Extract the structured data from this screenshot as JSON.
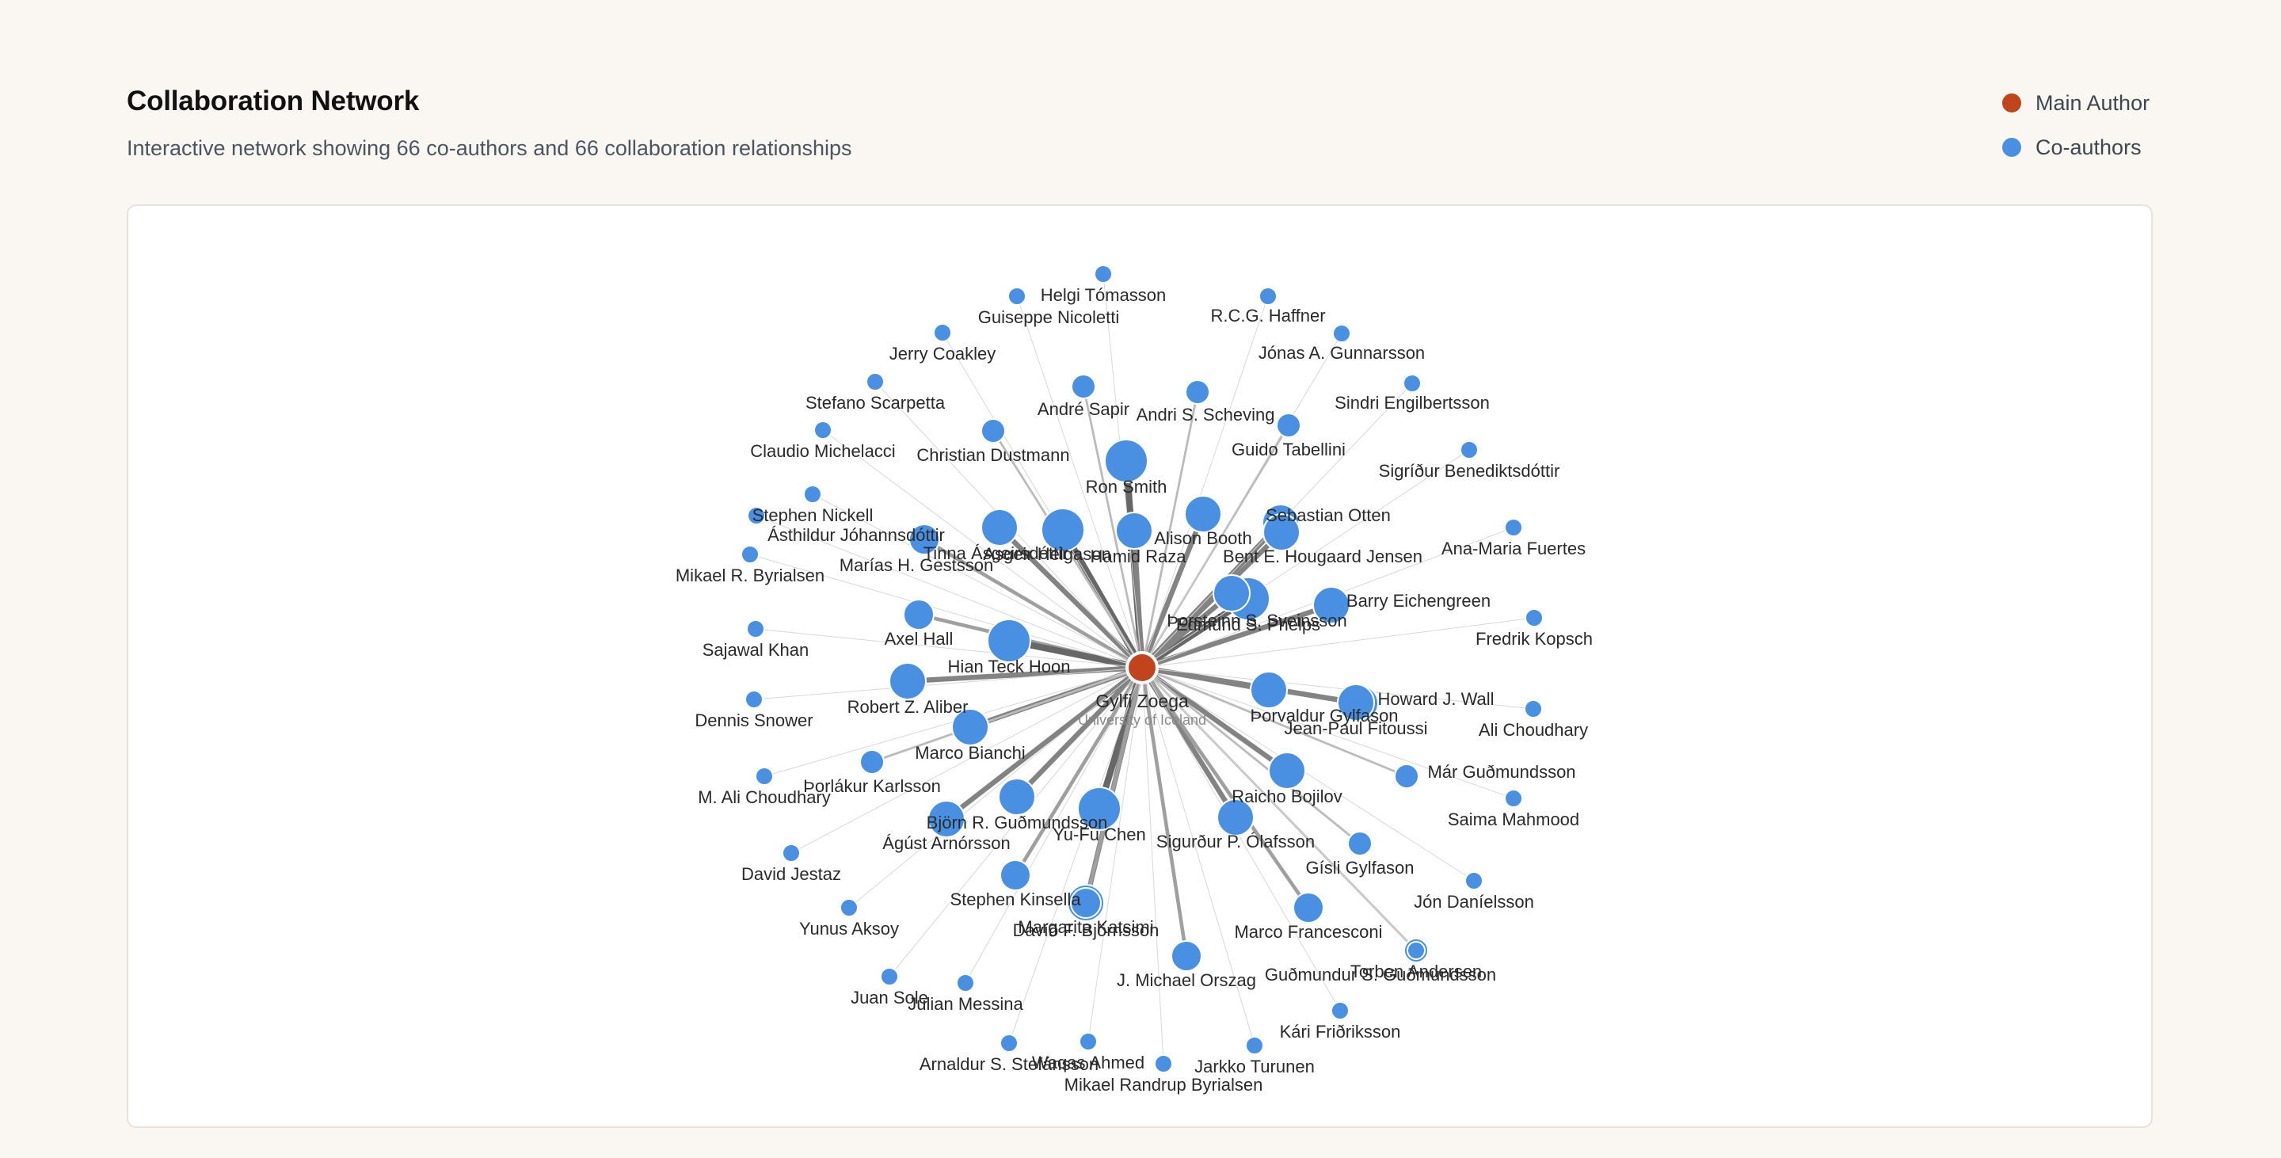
{
  "header": {
    "title": "Collaboration Network",
    "subtitle": "Interactive network showing 66 co-authors and 66 collaboration relationships"
  },
  "legend": {
    "main_author": {
      "label": "Main Author",
      "color": "#c0441c"
    },
    "coauthors": {
      "label": "Co-authors",
      "color": "#4a90e2"
    }
  },
  "network": {
    "main": {
      "name": "Gylfi Zoega",
      "affiliation": "University of Iceland"
    },
    "coauthors": [
      {
        "name": "Ron Smith",
        "weight": 5
      },
      {
        "name": "Alison Booth",
        "weight": 4
      },
      {
        "name": "Asgeir Helgason",
        "weight": 5
      },
      {
        "name": "Andri S. Scheving",
        "weight": 2
      },
      {
        "name": "André Sapir",
        "weight": 2
      },
      {
        "name": "Tinna Ásgeirsdóttir",
        "weight": 4
      },
      {
        "name": "Hamid Raza",
        "weight": 4
      },
      {
        "name": "Christian Dustmann",
        "weight": 2
      },
      {
        "name": "Sebastian Otten",
        "weight": 4
      },
      {
        "name": "Guido Tabellini",
        "weight": 2
      },
      {
        "name": "Marías H. Gestsson",
        "weight": 3
      },
      {
        "name": "Axel Hall",
        "weight": 3
      },
      {
        "name": "Hian Teck Hoon",
        "weight": 5
      },
      {
        "name": "Robert Z. Aliber",
        "weight": 4
      },
      {
        "name": "Edmund S. Phelps",
        "weight": 5
      },
      {
        "name": "Bent E. Hougaard Jensen",
        "weight": 4
      },
      {
        "name": "Barry Eichengreen",
        "weight": 4
      },
      {
        "name": "Þorsteinn S. Sveinsson",
        "weight": 4
      },
      {
        "name": "Howard J. Wall",
        "weight": 4
      },
      {
        "name": "Þorvaldur Gylfason",
        "weight": 4
      },
      {
        "name": "Jean-Paul Fitoussi",
        "weight": 4
      },
      {
        "name": "Marco Bianchi",
        "weight": 4
      },
      {
        "name": "Raicho Bojilov",
        "weight": 4
      },
      {
        "name": "Þorlákur Karlsson",
        "weight": 2
      },
      {
        "name": "Björn R. Guðmundsson",
        "weight": 4
      },
      {
        "name": "Yu-Fu Chen",
        "weight": 5
      },
      {
        "name": "Ágúst Arnórsson",
        "weight": 4
      },
      {
        "name": "Sigurður P. Ólafsson",
        "weight": 4
      },
      {
        "name": "Már Guðmundsson",
        "weight": 2
      },
      {
        "name": "Stephen Kinsella",
        "weight": 3
      },
      {
        "name": "Davíð F. Björnsson",
        "weight": 4
      },
      {
        "name": "Marco Francesconi",
        "weight": 3
      },
      {
        "name": "Margarita Katsimi",
        "weight": 3
      },
      {
        "name": "Gísli Gylfason",
        "weight": 2
      },
      {
        "name": "Guðmundur S. Guðmundsson",
        "weight": 2
      },
      {
        "name": "J. Michael Orszag",
        "weight": 3
      },
      {
        "name": "Guiseppe Nicoletti",
        "weight": 1
      },
      {
        "name": "Helgi Tómasson",
        "weight": 1
      },
      {
        "name": "R.C.G. Haffner",
        "weight": 1
      },
      {
        "name": "Jerry Coakley",
        "weight": 1
      },
      {
        "name": "Jónas A. Gunnarsson",
        "weight": 1
      },
      {
        "name": "Stefano Scarpetta",
        "weight": 1
      },
      {
        "name": "Sindri Engilbertsson",
        "weight": 1
      },
      {
        "name": "Claudio Michelacci",
        "weight": 1
      },
      {
        "name": "Ásthildur Jóhannsdóttir",
        "weight": 1
      },
      {
        "name": "Sigríður Benediktsdóttir",
        "weight": 1
      },
      {
        "name": "Stephen Nickell",
        "weight": 1
      },
      {
        "name": "Ana-Maria Fuertes",
        "weight": 1
      },
      {
        "name": "Mikael R. Byrialsen",
        "weight": 1
      },
      {
        "name": "Fredrik Kopsch",
        "weight": 1
      },
      {
        "name": "Sajawal Khan",
        "weight": 1
      },
      {
        "name": "Dennis Snower",
        "weight": 1
      },
      {
        "name": "Ali Choudhary",
        "weight": 1
      },
      {
        "name": "M. Ali Choudhary",
        "weight": 1
      },
      {
        "name": "Saima Mahmood",
        "weight": 1
      },
      {
        "name": "David Jestaz",
        "weight": 1
      },
      {
        "name": "Jón Daníelsson",
        "weight": 1
      },
      {
        "name": "Yunus Aksoy",
        "weight": 1
      },
      {
        "name": "Torben Andersen",
        "weight": 1
      },
      {
        "name": "Juan Sole",
        "weight": 1
      },
      {
        "name": "Julian Messina",
        "weight": 1
      },
      {
        "name": "Kári Friðriksson",
        "weight": 1
      },
      {
        "name": "Arnaldur S. Stefánsson",
        "weight": 1
      },
      {
        "name": "Waqas Ahmed",
        "weight": 1
      },
      {
        "name": "Jarkko Turunen",
        "weight": 1
      },
      {
        "name": "Mikael Randrup Byrialsen",
        "weight": 1
      }
    ]
  }
}
